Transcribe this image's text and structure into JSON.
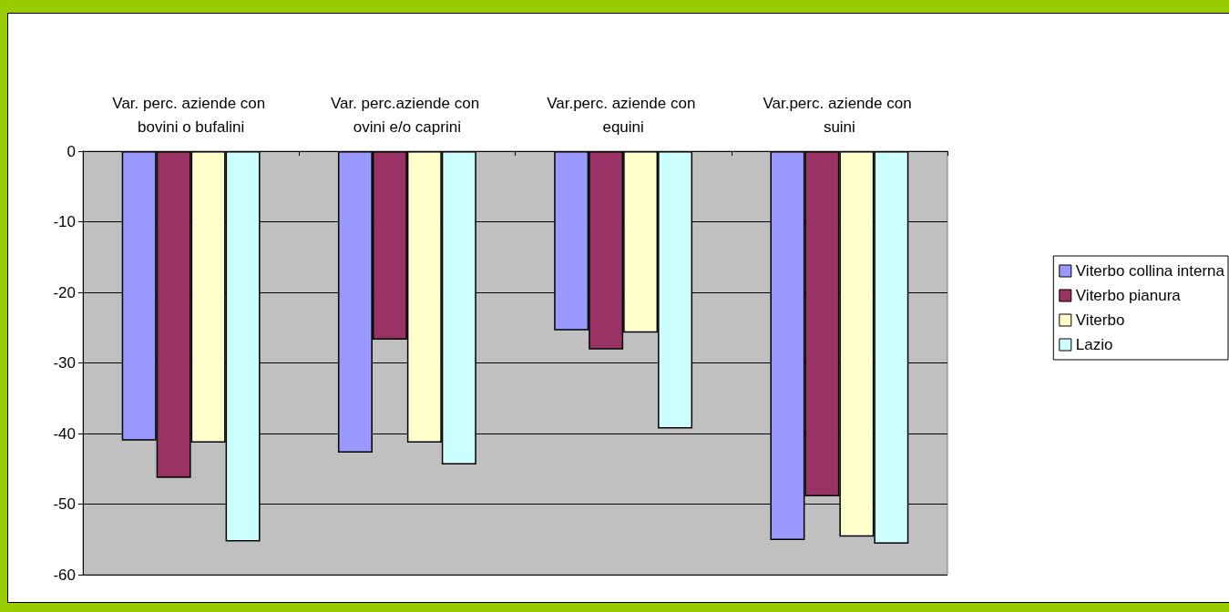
{
  "chart_data": {
    "type": "bar",
    "categories": [
      "Var. perc. aziende con bovini o bufalini",
      "Var. perc.aziende con ovini e/o caprini",
      "Var.perc. aziende con equini",
      "Var.perc. aziende con suini"
    ],
    "series": [
      {
        "name": "Viterbo collina interna",
        "color": "#9999ff",
        "values": [
          -41.0,
          -42.7,
          -25.4,
          -55.1
        ]
      },
      {
        "name": "Viterbo pianura",
        "color": "#993366",
        "values": [
          -46.3,
          -26.7,
          -28.1,
          -48.9
        ]
      },
      {
        "name": "Viterbo",
        "color": "#ffffcc",
        "values": [
          -41.3,
          -41.3,
          -25.7,
          -54.6
        ]
      },
      {
        "name": "Lazio",
        "color": "#ccffff",
        "values": [
          -55.3,
          -44.4,
          -39.3,
          -55.6
        ]
      }
    ],
    "ylim": [
      -60,
      0
    ],
    "yticks": [
      -60,
      -50,
      -40,
      -30,
      -20,
      -10,
      0
    ],
    "grid": "y",
    "legend": "right"
  }
}
